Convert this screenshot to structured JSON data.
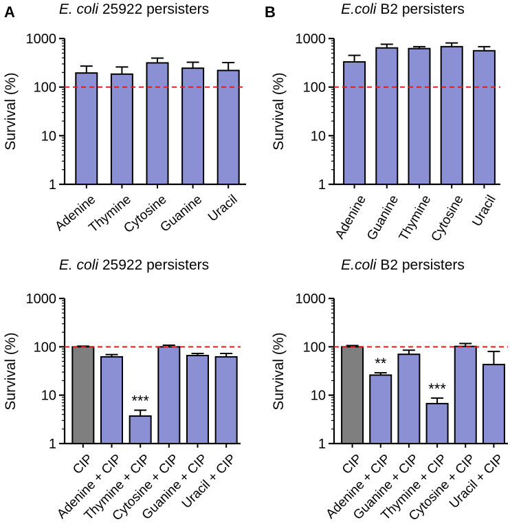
{
  "figure": {
    "panel_labels": [
      "A",
      "B"
    ]
  },
  "colors": {
    "bar_fill": "#8b8fd4",
    "control_fill": "#7f7f7f",
    "reference_line": "#e01c1c",
    "axis": "#000000"
  },
  "chart_data": [
    {
      "type": "bar",
      "title_italic": "E. coli",
      "title_rest": "25922 persisters",
      "ylabel": "Survival (%)",
      "yscale": "log",
      "ylim": [
        1,
        1000
      ],
      "yticks": [
        "1",
        "10",
        "100",
        "1000"
      ],
      "reference_line": 100,
      "categories": [
        "Adenine",
        "Thymine",
        "Cytosine",
        "Guanine",
        "Uracil"
      ],
      "values": [
        195,
        185,
        315,
        245,
        220
      ],
      "errors": [
        75,
        75,
        80,
        80,
        100
      ],
      "colors": [
        "blue",
        "blue",
        "blue",
        "blue",
        "blue"
      ],
      "annotations": [
        "",
        "",
        "",
        "",
        ""
      ]
    },
    {
      "type": "bar",
      "title_italic": "E.coli",
      "title_rest": "B2 persisters",
      "ylabel": "Survival (%)",
      "yscale": "log",
      "ylim": [
        1,
        1000
      ],
      "yticks": [
        "1",
        "10",
        "100",
        "1000"
      ],
      "reference_line": 100,
      "categories": [
        "Adenine",
        "Guanine",
        "Thymine",
        "Cytosine",
        "Uracil"
      ],
      "values": [
        330,
        640,
        620,
        680,
        560
      ],
      "errors": [
        120,
        120,
        60,
        130,
        120
      ],
      "colors": [
        "blue",
        "blue",
        "blue",
        "blue",
        "blue"
      ],
      "annotations": [
        "",
        "",
        "",
        "",
        ""
      ]
    },
    {
      "type": "bar",
      "title_italic": "E. coli",
      "title_rest": "25922 persisters",
      "ylabel": "Survival (%)",
      "yscale": "log",
      "ylim": [
        1,
        1000
      ],
      "yticks": [
        "1",
        "10",
        "100",
        "1000"
      ],
      "reference_line": 100,
      "categories": [
        "CIP",
        "Adenine + CIP",
        "Thymine + CIP",
        "Cytosine + CIP",
        "Guanine + CIP",
        "Uracil + CIP"
      ],
      "values": [
        100,
        62,
        3.7,
        100,
        66,
        62
      ],
      "errors": [
        3,
        7,
        1.2,
        8,
        7,
        11
      ],
      "colors": [
        "gray",
        "blue",
        "blue",
        "blue",
        "blue",
        "blue"
      ],
      "annotations": [
        "",
        "",
        "***",
        "",
        "",
        ""
      ]
    },
    {
      "type": "bar",
      "title_italic": "E.coli",
      "title_rest": "B2 persisters",
      "ylabel": "Survival (%)",
      "yscale": "log",
      "ylim": [
        1,
        1000
      ],
      "yticks": [
        "1",
        "10",
        "100",
        "1000"
      ],
      "reference_line": 100,
      "categories": [
        "CIP",
        "Adenine + CIP",
        "Guanine + CIP",
        "Thymine + CIP",
        "Cytosine + CIP",
        "Uracil + CIP"
      ],
      "values": [
        100,
        26,
        70,
        6.7,
        102,
        43
      ],
      "errors": [
        6,
        3,
        15,
        2,
        15,
        37
      ],
      "colors": [
        "gray",
        "blue",
        "blue",
        "blue",
        "blue",
        "blue"
      ],
      "annotations": [
        "",
        "**",
        "",
        "***",
        "",
        ""
      ]
    }
  ]
}
